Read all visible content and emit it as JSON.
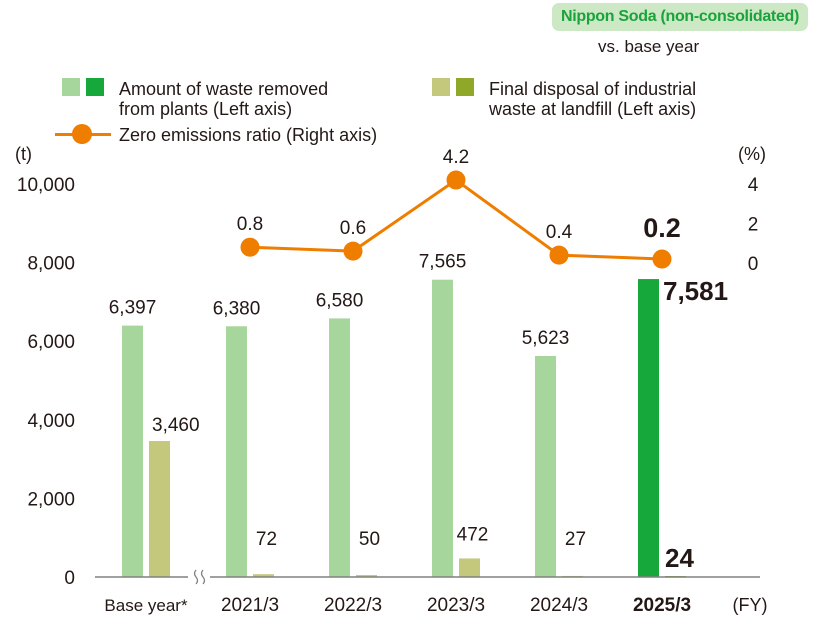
{
  "badge": "Nippon Soda (non-consolidated)",
  "comparison_note": "vs. base year",
  "colors": {
    "removed_light": "#a6d69b",
    "removed_dark": "#16a83b",
    "landfill_light": "#c4c87d",
    "landfill_dark": "#8fa82a",
    "ratio": "#ef7d00",
    "axis": "#808080",
    "badge_bg": "#cde8c4",
    "badge_text": "#1aa33c"
  },
  "chart_data": {
    "type": "bar",
    "categories": [
      "Base year*",
      "2021/3",
      "2022/3",
      "2023/3",
      "2024/3",
      "2025/3"
    ],
    "highlight_category": "2025/3",
    "xlabel": "(FY)",
    "axis_break_after": "Base year*",
    "y_left": {
      "unit": "(t)",
      "range": [
        0,
        10000
      ],
      "ticks": [
        "0",
        "2,000",
        "4,000",
        "6,000",
        "8,000",
        "10,000"
      ]
    },
    "y_right": {
      "unit": "(%)",
      "range": [
        0,
        4
      ],
      "ticks": [
        "0",
        "2",
        "4"
      ]
    },
    "grid": false,
    "legend": {
      "placement": "top",
      "items": [
        {
          "label": "Amount of waste removed from plants (Left axis)",
          "lines": [
            "Amount of waste removed",
            "from plants (Left axis)"
          ]
        },
        {
          "label": "Final disposal of industrial waste at landfill (Left axis)",
          "lines": [
            "Final disposal of industrial",
            "waste at landfill (Left axis)"
          ]
        },
        {
          "label": "Zero emissions ratio (Right axis)",
          "lines": [
            "Zero emissions ratio (Right axis)"
          ]
        }
      ]
    },
    "series": [
      {
        "name": "Amount of waste removed from plants (Left axis)",
        "type": "bar",
        "axis": "left",
        "values": [
          6397,
          6380,
          6580,
          7565,
          5623,
          7581
        ],
        "labels": [
          "6,397",
          "6,380",
          "6,580",
          "7,565",
          "5,623",
          "7,581"
        ]
      },
      {
        "name": "Final disposal of industrial waste at landfill (Left axis)",
        "type": "bar",
        "axis": "left",
        "values": [
          3460,
          72,
          50,
          472,
          27,
          24
        ],
        "labels": [
          "3,460",
          "72",
          "50",
          "472",
          "27",
          "24"
        ]
      },
      {
        "name": "Zero emissions ratio (Right axis)",
        "type": "line",
        "axis": "right",
        "values": [
          null,
          0.8,
          0.6,
          4.2,
          0.4,
          0.2
        ],
        "labels": [
          "",
          "0.8",
          "0.6",
          "4.2",
          "0.4",
          "0.2"
        ]
      }
    ]
  }
}
